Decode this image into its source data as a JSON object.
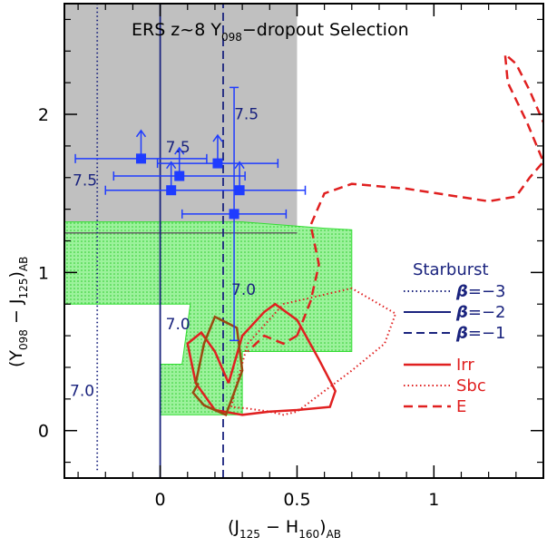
{
  "chart_data": {
    "type": "scatter",
    "title": {
      "pre": "ERS z~8 Y",
      "sub": "098",
      "post": "−dropout Selection"
    },
    "xlabel": {
      "open": "(J",
      "sub1": "125",
      "mid": " − H",
      "sub2": "160",
      "close": ")",
      "sub3": "AB"
    },
    "ylabel": {
      "open": "(Y",
      "sub1": "098",
      "mid": " − J",
      "sub2": "125",
      "close": ")",
      "sub3": "AB"
    },
    "xlim": [
      -0.35,
      1.4
    ],
    "ylim": [
      -0.3,
      2.7
    ],
    "x_ticks": [
      0,
      0.5,
      1
    ],
    "x_tick_labels": [
      "0",
      "0.5",
      "1"
    ],
    "y_ticks": [
      0,
      1,
      2
    ],
    "y_tick_labels": [
      "0",
      "1",
      "2"
    ],
    "colors": {
      "observed": "#1f3cff",
      "starburst": "#1a237e",
      "galaxy": "#e02020",
      "sbc_brown": "#9a4a10",
      "selection_gray": "#c0c0c0",
      "green": "#33dd33"
    },
    "selection_box": {
      "x": [
        -0.35,
        0.5
      ],
      "y": [
        1.25,
        2.7
      ]
    },
    "green_region": [
      [
        -0.35,
        1.32
      ],
      [
        0.3,
        1.32
      ],
      [
        0.6,
        1.28
      ],
      [
        0.7,
        1.27
      ],
      [
        0.7,
        0.5
      ],
      [
        0.3,
        0.5
      ],
      [
        0.3,
        0.1
      ],
      [
        0.0,
        0.1
      ],
      [
        0.0,
        0.42
      ],
      [
        0.08,
        0.42
      ],
      [
        0.11,
        0.8
      ],
      [
        -0.35,
        0.8
      ]
    ],
    "observed_points": [
      {
        "x": -0.07,
        "y": 1.72,
        "xerr": 0.24,
        "yerr_lo": 0.0,
        "yerr_hi": 0.0,
        "lower_limit": true
      },
      {
        "x": 0.07,
        "y": 1.61,
        "xerr": 0.24,
        "yerr_lo": 0.0,
        "yerr_hi": 0.0,
        "lower_limit": true
      },
      {
        "x": 0.04,
        "y": 1.52,
        "xerr": 0.24,
        "yerr_lo": 0.0,
        "yerr_hi": 0.0,
        "lower_limit": true
      },
      {
        "x": 0.21,
        "y": 1.69,
        "xerr": 0.22,
        "yerr_lo": 0.0,
        "yerr_hi": 0.0,
        "lower_limit": true
      },
      {
        "x": 0.29,
        "y": 1.52,
        "xerr": 0.24,
        "yerr_lo": 0.0,
        "yerr_hi": 0.0,
        "lower_limit": true
      },
      {
        "x": 0.27,
        "y": 1.37,
        "xerr": 0.19,
        "yerr_lo": 0.8,
        "yerr_hi": 0.8,
        "lower_limit": false
      }
    ],
    "starburst_tracks": [
      {
        "beta": "−3",
        "x": -0.23,
        "y": [
          -0.25,
          2.7
        ]
      },
      {
        "beta": "−2",
        "x": 0.0,
        "y": [
          -0.3,
          2.7
        ]
      },
      {
        "beta": "−1",
        "x": 0.23,
        "y": [
          -0.3,
          2.7
        ]
      }
    ],
    "track_annotations": [
      {
        "text": "7.5",
        "x": 0.27,
        "y": 1.97
      },
      {
        "text": "7.5",
        "x": 0.02,
        "y": 1.76
      },
      {
        "text": "7.5",
        "x": -0.32,
        "y": 1.55
      },
      {
        "text": "7.0",
        "x": 0.26,
        "y": 0.86
      },
      {
        "text": "7.0",
        "x": 0.02,
        "y": 0.64
      },
      {
        "text": "7.0",
        "x": -0.33,
        "y": 0.22
      }
    ],
    "series": [
      {
        "name": "Irr",
        "style": "solid",
        "x": [
          0.25,
          0.2,
          0.15,
          0.1,
          0.13,
          0.2,
          0.3,
          0.4,
          0.5,
          0.62,
          0.64,
          0.58,
          0.5,
          0.42,
          0.38,
          0.3,
          0.25
        ],
        "y": [
          0.3,
          0.5,
          0.62,
          0.55,
          0.3,
          0.13,
          0.1,
          0.12,
          0.13,
          0.15,
          0.25,
          0.45,
          0.7,
          0.8,
          0.75,
          0.6,
          0.3
        ]
      },
      {
        "name": "Sbc",
        "style": "dotted",
        "x": [
          0.26,
          0.28,
          0.32,
          0.45,
          0.7,
          0.86,
          0.82,
          0.7,
          0.6,
          0.5,
          0.45,
          0.4,
          0.32,
          0.26
        ],
        "y": [
          0.15,
          0.3,
          0.55,
          0.8,
          0.9,
          0.74,
          0.55,
          0.38,
          0.25,
          0.12,
          0.1,
          0.12,
          0.14,
          0.15
        ]
      },
      {
        "name": "E",
        "style": "dashed",
        "x": [
          0.5,
          0.55,
          0.58,
          0.55,
          0.6,
          0.7,
          0.9,
          1.2,
          1.3,
          1.35,
          1.4,
          1.34,
          1.27,
          1.26,
          1.3,
          1.35,
          1.4
        ],
        "y": [
          0.6,
          0.82,
          1.05,
          1.3,
          1.5,
          1.56,
          1.53,
          1.45,
          1.48,
          1.6,
          1.7,
          1.95,
          2.2,
          2.38,
          2.32,
          2.15,
          1.95
        ]
      }
    ],
    "e_left_branch": {
      "x": [
        0.5,
        0.45,
        0.38,
        0.32
      ],
      "y": [
        0.6,
        0.55,
        0.6,
        0.5
      ]
    },
    "legend": {
      "title": "Starburst",
      "beta_prefix": "β",
      "beta_labels": [
        "=−3",
        "=−2",
        "=−1"
      ],
      "galaxy_labels": [
        "Irr",
        "Sbc",
        "E"
      ]
    }
  }
}
